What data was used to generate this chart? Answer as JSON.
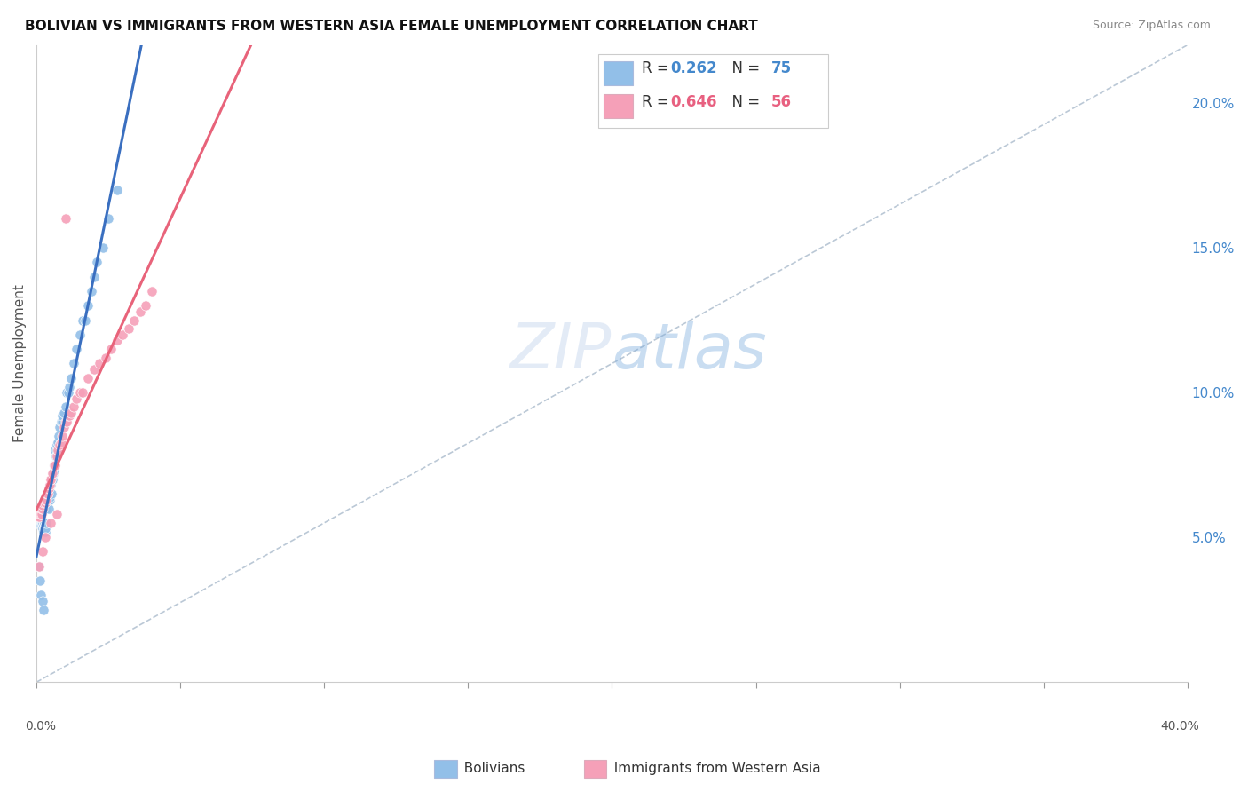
{
  "title": "BOLIVIAN VS IMMIGRANTS FROM WESTERN ASIA FEMALE UNEMPLOYMENT CORRELATION CHART",
  "source": "Source: ZipAtlas.com",
  "ylabel": "Female Unemployment",
  "right_yticks": [
    0.05,
    0.1,
    0.15,
    0.2
  ],
  "xmin": 0.0,
  "xmax": 0.4,
  "ymin": 0.0,
  "ymax": 0.22,
  "bolivians_color": "#92bfe8",
  "western_asia_color": "#f5a0b8",
  "bolivians_line_color": "#3a6fc0",
  "western_asia_line_color": "#e8637a",
  "ref_line_color": "#aabbcc",
  "bolivians_R": 0.262,
  "bolivians_N": 75,
  "western_asia_R": 0.646,
  "western_asia_N": 56,
  "bolivians_scatter_x": [
    0.0005,
    0.0005,
    0.0007,
    0.0008,
    0.001,
    0.001,
    0.0012,
    0.0013,
    0.0015,
    0.0015,
    0.0017,
    0.0018,
    0.0018,
    0.002,
    0.002,
    0.0022,
    0.0022,
    0.0023,
    0.0025,
    0.0025,
    0.0027,
    0.0028,
    0.0028,
    0.003,
    0.003,
    0.0032,
    0.0033,
    0.0035,
    0.0037,
    0.0038,
    0.004,
    0.0042,
    0.0043,
    0.0045,
    0.0045,
    0.0047,
    0.005,
    0.0052,
    0.0055,
    0.0057,
    0.006,
    0.0062,
    0.0065,
    0.0068,
    0.007,
    0.0072,
    0.0075,
    0.0078,
    0.008,
    0.0085,
    0.0088,
    0.009,
    0.0095,
    0.01,
    0.0105,
    0.011,
    0.0115,
    0.012,
    0.013,
    0.014,
    0.015,
    0.016,
    0.017,
    0.018,
    0.019,
    0.02,
    0.021,
    0.023,
    0.025,
    0.028,
    0.001,
    0.0012,
    0.0015,
    0.002,
    0.0025
  ],
  "bolivians_scatter_y": [
    0.057,
    0.055,
    0.058,
    0.056,
    0.058,
    0.055,
    0.057,
    0.055,
    0.056,
    0.054,
    0.055,
    0.054,
    0.056,
    0.054,
    0.053,
    0.055,
    0.053,
    0.054,
    0.052,
    0.054,
    0.055,
    0.053,
    0.055,
    0.052,
    0.054,
    0.053,
    0.055,
    0.06,
    0.062,
    0.063,
    0.065,
    0.063,
    0.06,
    0.065,
    0.063,
    0.064,
    0.068,
    0.065,
    0.07,
    0.072,
    0.073,
    0.075,
    0.08,
    0.078,
    0.08,
    0.082,
    0.083,
    0.085,
    0.088,
    0.09,
    0.09,
    0.092,
    0.093,
    0.095,
    0.1,
    0.1,
    0.102,
    0.105,
    0.11,
    0.115,
    0.12,
    0.125,
    0.125,
    0.13,
    0.135,
    0.14,
    0.145,
    0.15,
    0.16,
    0.17,
    0.04,
    0.035,
    0.03,
    0.028,
    0.025
  ],
  "western_asia_scatter_x": [
    0.0005,
    0.0008,
    0.001,
    0.0012,
    0.0015,
    0.0017,
    0.0018,
    0.002,
    0.0022,
    0.0025,
    0.0027,
    0.003,
    0.0032,
    0.0035,
    0.0037,
    0.004,
    0.0042,
    0.0045,
    0.0048,
    0.005,
    0.0055,
    0.006,
    0.0065,
    0.007,
    0.0075,
    0.008,
    0.0085,
    0.009,
    0.0095,
    0.01,
    0.0105,
    0.011,
    0.0115,
    0.012,
    0.013,
    0.014,
    0.015,
    0.016,
    0.018,
    0.02,
    0.022,
    0.024,
    0.026,
    0.028,
    0.03,
    0.032,
    0.034,
    0.036,
    0.038,
    0.04,
    0.001,
    0.002,
    0.003,
    0.005,
    0.007,
    0.01
  ],
  "western_asia_scatter_y": [
    0.057,
    0.058,
    0.057,
    0.058,
    0.058,
    0.058,
    0.06,
    0.06,
    0.061,
    0.062,
    0.063,
    0.062,
    0.063,
    0.063,
    0.065,
    0.065,
    0.067,
    0.068,
    0.07,
    0.07,
    0.072,
    0.075,
    0.075,
    0.078,
    0.08,
    0.082,
    0.083,
    0.085,
    0.088,
    0.09,
    0.09,
    0.092,
    0.092,
    0.093,
    0.095,
    0.098,
    0.1,
    0.1,
    0.105,
    0.108,
    0.11,
    0.112,
    0.115,
    0.118,
    0.12,
    0.122,
    0.125,
    0.128,
    0.13,
    0.135,
    0.04,
    0.045,
    0.05,
    0.055,
    0.058,
    0.16
  ],
  "grid_color": "#d8e0ec",
  "blue_line_x_end": 0.1
}
